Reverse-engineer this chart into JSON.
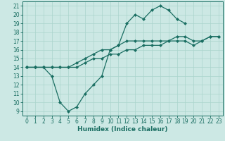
{
  "xlabel": "Humidex (Indice chaleur)",
  "xlim": [
    -0.5,
    23.5
  ],
  "ylim": [
    8.5,
    21.5
  ],
  "yticks": [
    9,
    10,
    11,
    12,
    13,
    14,
    15,
    16,
    17,
    18,
    19,
    20,
    21
  ],
  "xticks": [
    0,
    1,
    2,
    3,
    4,
    5,
    6,
    7,
    8,
    9,
    10,
    11,
    12,
    13,
    14,
    15,
    16,
    17,
    18,
    19,
    20,
    21,
    22,
    23
  ],
  "bg_color": "#cce8e4",
  "line_color": "#1a6e62",
  "grid_color": "#aad4cc",
  "line1_x": [
    0,
    1,
    2,
    3,
    4,
    5,
    6,
    7,
    8,
    9,
    10,
    11,
    12,
    13,
    14,
    15,
    16,
    17,
    18,
    19
  ],
  "line1_y": [
    14,
    14,
    14,
    13,
    10,
    9,
    9.5,
    11,
    12,
    13,
    16,
    16.5,
    19,
    20,
    19.5,
    20.5,
    21,
    20.5,
    19.5,
    19
  ],
  "line2_x": [
    0,
    1,
    2,
    3,
    4,
    5,
    6,
    7,
    8,
    9,
    10,
    11,
    12,
    13,
    14,
    15,
    16,
    17,
    18,
    19,
    20,
    21,
    22,
    23
  ],
  "line2_y": [
    14,
    14,
    14,
    14,
    14,
    14,
    14.5,
    15,
    15.5,
    16,
    16,
    16.5,
    17,
    17,
    17,
    17,
    17,
    17,
    17.5,
    17.5,
    17,
    17,
    17.5,
    17.5
  ],
  "line3_x": [
    0,
    1,
    2,
    3,
    4,
    5,
    6,
    7,
    8,
    9,
    10,
    11,
    12,
    13,
    14,
    15,
    16,
    17,
    18,
    19,
    20,
    21,
    22,
    23
  ],
  "line3_y": [
    14,
    14,
    14,
    14,
    14,
    14,
    14,
    14.5,
    15,
    15,
    15.5,
    15.5,
    16,
    16,
    16.5,
    16.5,
    16.5,
    17,
    17,
    17,
    16.5,
    17,
    17.5,
    17.5
  ],
  "tick_fontsize": 5.5,
  "xlabel_fontsize": 6.5,
  "marker_size": 2.5
}
